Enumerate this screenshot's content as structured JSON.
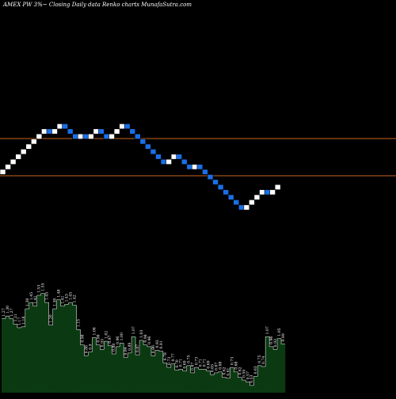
{
  "header": {
    "title": "AMEX  PW 3%~  Closing Daily data  Renko  charts MunafaSutra.com"
  },
  "chart_data": [
    {
      "type": "renko",
      "title": "AMEX  PW 3%~  Closing Daily data  Renko  charts MunafaSutra.com",
      "brick_colors": {
        "up": "#ffffff",
        "down": "#1a6fe6"
      },
      "bricks": [
        "up",
        "up",
        "up",
        "up",
        "up",
        "up",
        "up",
        "up",
        "up",
        "down",
        "up",
        "up",
        "down",
        "down",
        "down",
        "up",
        "down",
        "up",
        "up",
        "down",
        "down",
        "up",
        "up",
        "up",
        "down",
        "down",
        "down",
        "down",
        "down",
        "down",
        "down",
        "down",
        "up",
        "up",
        "down",
        "down",
        "down",
        "up",
        "down",
        "down",
        "down",
        "down",
        "down",
        "down",
        "down",
        "down",
        "down",
        "up",
        "up",
        "up",
        "up",
        "down",
        "up",
        "up"
      ],
      "reference_lines": [
        "upper",
        "lower"
      ],
      "reference_line_color": "#c8641e"
    },
    {
      "type": "bar",
      "fill": "#0b3a12",
      "outline": "#ffffff",
      "labels": [
        "1.27",
        "1.30",
        "1.27",
        "1.21",
        "1.17",
        "1.18",
        "1.38",
        "1.45",
        "1.41",
        "1.53",
        "1.55",
        "1.45",
        "1.20",
        "1.38",
        "1.48",
        "1.41",
        "1.43",
        "1.45",
        "1.42",
        "1.15",
        "0.98",
        "0.86",
        "0.9",
        "1.06",
        "0.98",
        "0.93",
        "1.02",
        "0.97",
        "0.88",
        "0.96",
        "1.00",
        "0.84",
        "0.89",
        "1.07",
        "0.87",
        "1.03",
        "0.98",
        "0.96",
        "0.86",
        "0.92",
        "0.91",
        "0.78",
        "0.73",
        "0.77",
        "0.70",
        "0.71",
        "0.69",
        "0.75",
        "0.67",
        "0.73",
        "0.71",
        "0.71",
        "0.69",
        "0.65",
        "0.67",
        "0.68",
        "0.62",
        "0.61",
        "0.73",
        "0.68",
        "0.62",
        "0.59",
        "0.57",
        "0.53",
        "0.63",
        "0.75",
        "0.74",
        "1.07",
        "0.96",
        "0.93",
        "1.05",
        "0.99"
      ],
      "values": [
        1.27,
        1.3,
        1.27,
        1.21,
        1.17,
        1.18,
        1.38,
        1.45,
        1.41,
        1.53,
        1.55,
        1.45,
        1.2,
        1.38,
        1.48,
        1.41,
        1.43,
        1.45,
        1.42,
        1.15,
        0.98,
        0.86,
        0.9,
        1.06,
        0.98,
        0.93,
        1.02,
        0.97,
        0.88,
        0.96,
        1.0,
        0.84,
        0.89,
        1.07,
        0.87,
        1.03,
        0.98,
        0.96,
        0.86,
        0.92,
        0.91,
        0.78,
        0.73,
        0.77,
        0.7,
        0.71,
        0.69,
        0.75,
        0.67,
        0.73,
        0.71,
        0.71,
        0.69,
        0.65,
        0.67,
        0.68,
        0.62,
        0.61,
        0.73,
        0.68,
        0.62,
        0.59,
        0.57,
        0.53,
        0.63,
        0.75,
        0.74,
        1.07,
        0.96,
        0.93,
        1.05,
        0.99
      ],
      "ylim": [
        0.45,
        1.6
      ]
    }
  ]
}
